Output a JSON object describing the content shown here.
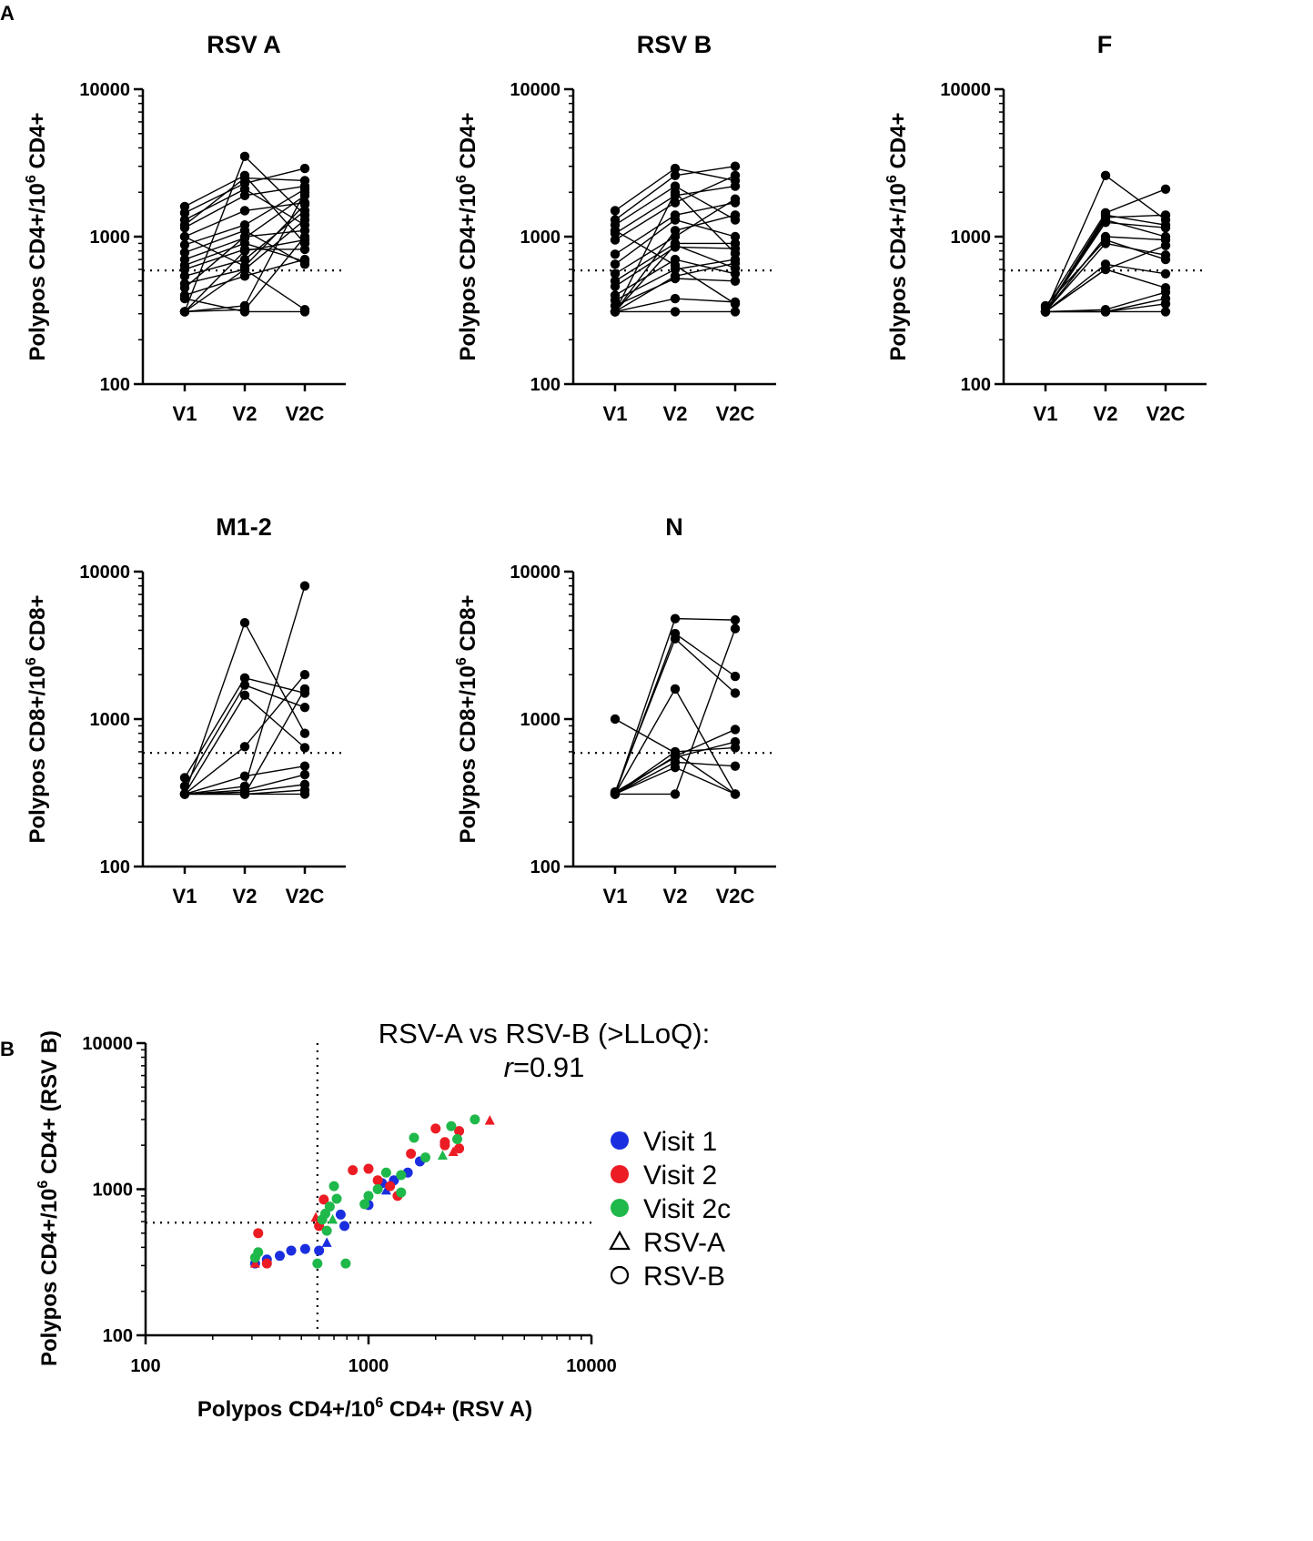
{
  "panel_labels": {
    "a": "A",
    "b": "B"
  },
  "chart_data": [
    {
      "type": "line",
      "title": "RSV A",
      "ylabel_main": "Polypos CD4+/10",
      "ylabel_exp": "6",
      "ylabel_tail": " CD4+",
      "categories": [
        "V1",
        "V2",
        "V2C"
      ],
      "yscale": "log",
      "ylim": [
        100,
        10000
      ],
      "yticks": [
        "100",
        "1000",
        "10000"
      ],
      "reference_line": 590,
      "subjects": [
        [
          310,
          3500,
          1400
        ],
        [
          1600,
          2600,
          900
        ],
        [
          1450,
          2300,
          2900
        ],
        [
          1300,
          2100,
          1200
        ],
        [
          1200,
          2500,
          2400
        ],
        [
          1150,
          1900,
          2200
        ],
        [
          1000,
          1500,
          1700
        ],
        [
          880,
          1200,
          2100
        ],
        [
          780,
          1100,
          650
        ],
        [
          700,
          980,
          1900
        ],
        [
          640,
          900,
          680
        ],
        [
          600,
          820,
          820
        ],
        [
          540,
          700,
          1500
        ],
        [
          480,
          600,
          1300
        ],
        [
          450,
          1000,
          1100
        ],
        [
          400,
          540,
          700
        ],
        [
          380,
          310,
          310
        ],
        [
          310,
          340,
          2000
        ],
        [
          310,
          320,
          1000
        ],
        [
          310,
          800,
          950
        ],
        [
          310,
          600,
          320
        ],
        [
          1000,
          630,
          1650
        ]
      ]
    },
    {
      "type": "line",
      "title": "RSV B",
      "ylabel_main": "Polypos CD4+/10",
      "ylabel_exp": "6",
      "ylabel_tail": " CD4+",
      "categories": [
        "V1",
        "V2",
        "V2C"
      ],
      "yscale": "log",
      "ylim": [
        100,
        10000
      ],
      "yticks": [
        "100",
        "1000",
        "10000"
      ],
      "reference_line": 590,
      "subjects": [
        [
          1500,
          2900,
          2400
        ],
        [
          1300,
          2600,
          3000
        ],
        [
          1200,
          2200,
          1300
        ],
        [
          1050,
          1900,
          2200
        ],
        [
          950,
          1700,
          2600
        ],
        [
          760,
          1400,
          1700
        ],
        [
          650,
          1300,
          1000
        ],
        [
          560,
          1000,
          1800
        ],
        [
          500,
          900,
          900
        ],
        [
          460,
          850,
          830
        ],
        [
          400,
          700,
          560
        ],
        [
          370,
          600,
          700
        ],
        [
          340,
          520,
          500
        ],
        [
          310,
          310,
          310
        ],
        [
          310,
          380,
          360
        ],
        [
          310,
          2000,
          770
        ],
        [
          310,
          1100,
          1400
        ],
        [
          310,
          540,
          660
        ],
        [
          310,
          880,
          610
        ],
        [
          1100,
          640,
          350
        ]
      ]
    },
    {
      "type": "line",
      "title": "F",
      "ylabel_main": "Polypos CD4+/10",
      "ylabel_exp": "6",
      "ylabel_tail": " CD4+",
      "categories": [
        "V1",
        "V2",
        "V2C"
      ],
      "yscale": "log",
      "ylim": [
        100,
        10000
      ],
      "yticks": [
        "100",
        "1000",
        "10000"
      ],
      "reference_line": 590,
      "subjects": [
        [
          310,
          2600,
          1300
        ],
        [
          330,
          1450,
          2100
        ],
        [
          310,
          1350,
          1400
        ],
        [
          310,
          1250,
          1150
        ],
        [
          310,
          1000,
          950
        ],
        [
          340,
          950,
          700
        ],
        [
          310,
          650,
          560
        ],
        [
          310,
          600,
          450
        ],
        [
          310,
          320,
          420
        ],
        [
          310,
          310,
          380
        ],
        [
          310,
          310,
          310
        ],
        [
          310,
          1300,
          1000
        ],
        [
          310,
          1400,
          1200
        ],
        [
          310,
          600,
          870
        ],
        [
          310,
          310,
          350
        ],
        [
          310,
          900,
          750
        ]
      ]
    },
    {
      "type": "line",
      "title": "M1-2",
      "ylabel_main": "Polypos CD8+/10",
      "ylabel_exp": "6",
      "ylabel_tail": " CD8+",
      "categories": [
        "V1",
        "V2",
        "V2C"
      ],
      "yscale": "log",
      "ylim": [
        100,
        10000
      ],
      "yticks": [
        "100",
        "1000",
        "10000"
      ],
      "reference_line": 590,
      "subjects": [
        [
          310,
          4500,
          800
        ],
        [
          400,
          1900,
          1500
        ],
        [
          350,
          1700,
          1200
        ],
        [
          310,
          1450,
          640
        ],
        [
          310,
          650,
          2000
        ],
        [
          310,
          410,
          480
        ],
        [
          310,
          350,
          8000
        ],
        [
          310,
          310,
          310
        ],
        [
          310,
          320,
          360
        ],
        [
          310,
          310,
          330
        ],
        [
          310,
          310,
          1600
        ],
        [
          310,
          330,
          420
        ]
      ]
    },
    {
      "type": "line",
      "title": "N",
      "ylabel_main": "Polypos CD8+/10",
      "ylabel_exp": "6",
      "ylabel_tail": " CD8+",
      "categories": [
        "V1",
        "V2",
        "V2C"
      ],
      "yscale": "log",
      "ylim": [
        100,
        10000
      ],
      "yticks": [
        "100",
        "1000",
        "10000"
      ],
      "reference_line": 590,
      "subjects": [
        [
          310,
          4800,
          4700
        ],
        [
          1000,
          590,
          310
        ],
        [
          310,
          3800,
          1950
        ],
        [
          320,
          3500,
          1500
        ],
        [
          310,
          1600,
          310
        ],
        [
          310,
          560,
          850
        ],
        [
          310,
          600,
          640
        ],
        [
          310,
          510,
          480
        ],
        [
          310,
          310,
          4100
        ],
        [
          310,
          470,
          310
        ],
        [
          320,
          550,
          700
        ]
      ]
    },
    {
      "type": "scatter",
      "xlabel_main": "Polypos CD4+/10",
      "xlabel_exp": "6",
      "xlabel_tail": " CD4+ (RSV A)",
      "ylabel_main": "Polypos CD4+/10",
      "ylabel_exp": "6",
      "ylabel_tail": " CD4+ (RSV B)",
      "xscale": "log",
      "yscale": "log",
      "xlim": [
        100,
        10000
      ],
      "ylim": [
        100,
        10000
      ],
      "xticks": [
        "100",
        "1000",
        "10000"
      ],
      "yticks": [
        "100",
        "1000",
        "10000"
      ],
      "reference_lines": {
        "x": 590,
        "y": 590
      },
      "annotation_line1": "RSV-A vs RSV-B (>LLoQ):",
      "annotation_r": "r",
      "annotation_value": "=0.91",
      "colors": {
        "Visit 1": "#1a2ee0",
        "Visit 2": "#ec1c24",
        "Visit 2c": "#1fb84a"
      },
      "legend": [
        {
          "label": "Visit 1",
          "marker": "circle",
          "color": "#1a2ee0"
        },
        {
          "label": "Visit 2",
          "marker": "circle",
          "color": "#ec1c24"
        },
        {
          "label": "Visit 2c",
          "marker": "circle",
          "color": "#1fb84a"
        },
        {
          "label": "RSV-A",
          "marker": "triangle-open",
          "color": "#000000"
        },
        {
          "label": "RSV-B",
          "marker": "circle-open",
          "color": "#000000"
        }
      ],
      "points": [
        {
          "x": 310,
          "y": 310,
          "visit": "Visit 1",
          "shape": "circle"
        },
        {
          "x": 350,
          "y": 330,
          "visit": "Visit 1",
          "shape": "circle"
        },
        {
          "x": 400,
          "y": 350,
          "visit": "Visit 1",
          "shape": "circle"
        },
        {
          "x": 450,
          "y": 380,
          "visit": "Visit 1",
          "shape": "circle"
        },
        {
          "x": 520,
          "y": 390,
          "visit": "Visit 1",
          "shape": "circle"
        },
        {
          "x": 600,
          "y": 380,
          "visit": "Visit 1",
          "shape": "circle"
        },
        {
          "x": 650,
          "y": 430,
          "visit": "Visit 1",
          "shape": "triangle"
        },
        {
          "x": 750,
          "y": 670,
          "visit": "Visit 1",
          "shape": "circle"
        },
        {
          "x": 780,
          "y": 560,
          "visit": "Visit 1",
          "shape": "circle"
        },
        {
          "x": 1000,
          "y": 780,
          "visit": "Visit 1",
          "shape": "circle"
        },
        {
          "x": 1150,
          "y": 1100,
          "visit": "Visit 1",
          "shape": "circle"
        },
        {
          "x": 1300,
          "y": 1150,
          "visit": "Visit 1",
          "shape": "circle"
        },
        {
          "x": 1500,
          "y": 1300,
          "visit": "Visit 1",
          "shape": "circle"
        },
        {
          "x": 1200,
          "y": 980,
          "visit": "Visit 1",
          "shape": "triangle"
        },
        {
          "x": 1700,
          "y": 1550,
          "visit": "Visit 1",
          "shape": "circle"
        },
        {
          "x": 320,
          "y": 500,
          "visit": "Visit 2",
          "shape": "circle"
        },
        {
          "x": 310,
          "y": 310,
          "visit": "Visit 2",
          "shape": "triangle"
        },
        {
          "x": 350,
          "y": 310,
          "visit": "Visit 2",
          "shape": "circle"
        },
        {
          "x": 580,
          "y": 640,
          "visit": "Visit 2",
          "shape": "triangle"
        },
        {
          "x": 600,
          "y": 560,
          "visit": "Visit 2",
          "shape": "circle"
        },
        {
          "x": 630,
          "y": 850,
          "visit": "Visit 2",
          "shape": "circle"
        },
        {
          "x": 850,
          "y": 1350,
          "visit": "Visit 2",
          "shape": "circle"
        },
        {
          "x": 1000,
          "y": 1380,
          "visit": "Visit 2",
          "shape": "circle"
        },
        {
          "x": 1100,
          "y": 1150,
          "visit": "Visit 2",
          "shape": "circle"
        },
        {
          "x": 1250,
          "y": 1050,
          "visit": "Visit 2",
          "shape": "circle"
        },
        {
          "x": 1350,
          "y": 900,
          "visit": "Visit 2",
          "shape": "circle"
        },
        {
          "x": 1550,
          "y": 1750,
          "visit": "Visit 2",
          "shape": "circle"
        },
        {
          "x": 2000,
          "y": 2600,
          "visit": "Visit 2",
          "shape": "circle"
        },
        {
          "x": 2200,
          "y": 2100,
          "visit": "Visit 2",
          "shape": "circle"
        },
        {
          "x": 2200,
          "y": 2000,
          "visit": "Visit 2",
          "shape": "circle"
        },
        {
          "x": 2400,
          "y": 1800,
          "visit": "Visit 2",
          "shape": "triangle"
        },
        {
          "x": 2550,
          "y": 1900,
          "visit": "Visit 2",
          "shape": "circle"
        },
        {
          "x": 2550,
          "y": 2500,
          "visit": "Visit 2",
          "shape": "circle"
        },
        {
          "x": 3500,
          "y": 2950,
          "visit": "Visit 2",
          "shape": "triangle"
        },
        {
          "x": 310,
          "y": 340,
          "visit": "Visit 2c",
          "shape": "circle"
        },
        {
          "x": 320,
          "y": 370,
          "visit": "Visit 2c",
          "shape": "circle"
        },
        {
          "x": 590,
          "y": 310,
          "visit": "Visit 2c",
          "shape": "circle"
        },
        {
          "x": 620,
          "y": 620,
          "visit": "Visit 2c",
          "shape": "circle"
        },
        {
          "x": 640,
          "y": 680,
          "visit": "Visit 2c",
          "shape": "circle"
        },
        {
          "x": 650,
          "y": 520,
          "visit": "Visit 2c",
          "shape": "circle"
        },
        {
          "x": 670,
          "y": 760,
          "visit": "Visit 2c",
          "shape": "circle"
        },
        {
          "x": 690,
          "y": 620,
          "visit": "Visit 2c",
          "shape": "triangle"
        },
        {
          "x": 700,
          "y": 1050,
          "visit": "Visit 2c",
          "shape": "circle"
        },
        {
          "x": 720,
          "y": 860,
          "visit": "Visit 2c",
          "shape": "circle"
        },
        {
          "x": 790,
          "y": 310,
          "visit": "Visit 2c",
          "shape": "circle"
        },
        {
          "x": 960,
          "y": 790,
          "visit": "Visit 2c",
          "shape": "circle"
        },
        {
          "x": 1000,
          "y": 900,
          "visit": "Visit 2c",
          "shape": "circle"
        },
        {
          "x": 1100,
          "y": 1000,
          "visit": "Visit 2c",
          "shape": "circle"
        },
        {
          "x": 1200,
          "y": 1300,
          "visit": "Visit 2c",
          "shape": "circle"
        },
        {
          "x": 1400,
          "y": 950,
          "visit": "Visit 2c",
          "shape": "circle"
        },
        {
          "x": 1400,
          "y": 1250,
          "visit": "Visit 2c",
          "shape": "circle"
        },
        {
          "x": 1600,
          "y": 2250,
          "visit": "Visit 2c",
          "shape": "circle"
        },
        {
          "x": 1800,
          "y": 1650,
          "visit": "Visit 2c",
          "shape": "circle"
        },
        {
          "x": 2150,
          "y": 1700,
          "visit": "Visit 2c",
          "shape": "triangle"
        },
        {
          "x": 2350,
          "y": 2700,
          "visit": "Visit 2c",
          "shape": "circle"
        },
        {
          "x": 2500,
          "y": 2200,
          "visit": "Visit 2c",
          "shape": "circle"
        },
        {
          "x": 3000,
          "y": 3000,
          "visit": "Visit 2c",
          "shape": "circle"
        }
      ]
    }
  ]
}
